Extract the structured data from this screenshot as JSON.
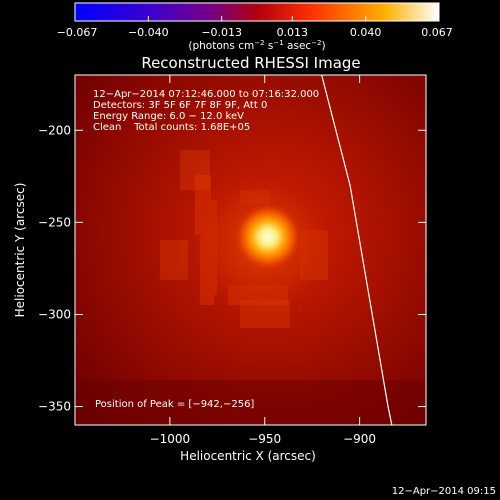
{
  "chart_data": {
    "type": "heatmap",
    "title": "Reconstructed RHESSI Image",
    "xlabel": "Heliocentric X (arcsec)",
    "ylabel": "Heliocentric Y (arcsec)",
    "xlim": [
      -1050,
      -865
    ],
    "ylim": [
      -360,
      -170
    ],
    "xticks": [
      -1000,
      -950,
      -900
    ],
    "xtick_labels": [
      "−1000",
      "−950",
      "−900"
    ],
    "yticks": [
      -200,
      -250,
      -300,
      -350
    ],
    "ytick_labels": [
      "−200",
      "−250",
      "−300",
      "−350"
    ],
    "colorbar": {
      "ticks": [
        -0.067,
        -0.04,
        -0.013,
        0.013,
        0.04,
        0.067
      ],
      "tick_labels": [
        "−0.067",
        "−0.040",
        "−0.013",
        "0.013",
        "0.040",
        "0.067"
      ],
      "units_prefix": "(photons cm",
      "units_exp1": "−2",
      "units_mid": " s",
      "units_exp2": "−1",
      "units_mid2": " asec",
      "units_exp3": "−2",
      "units_suffix": ")",
      "range": [
        -0.067,
        0.067
      ],
      "colors": [
        "#0000ff",
        "#5a00a0",
        "#8a0020",
        "#ff4000",
        "#ffb000",
        "#ffffff"
      ]
    },
    "annotations": [
      "12−Apr−2014 07:12:46.000 to 07:16:32.000",
      "Detectors: 3F 5F 6F 7F 8F 9F, Att 0",
      "Energy Range: 6.0 − 12.0 keV",
      "Clean    Total counts: 1.68E+05"
    ],
    "peak_label": "Position of Peak = [−942,−256]",
    "peak": [
      -942,
      -256
    ],
    "limb_curve": [
      [
        -920,
        -170
      ],
      [
        -905,
        -230
      ],
      [
        -895,
        -290
      ],
      [
        -885,
        -350
      ],
      [
        -883,
        -360
      ]
    ]
  },
  "footer": {
    "timestamp": "12−Apr−2014 09:15"
  }
}
